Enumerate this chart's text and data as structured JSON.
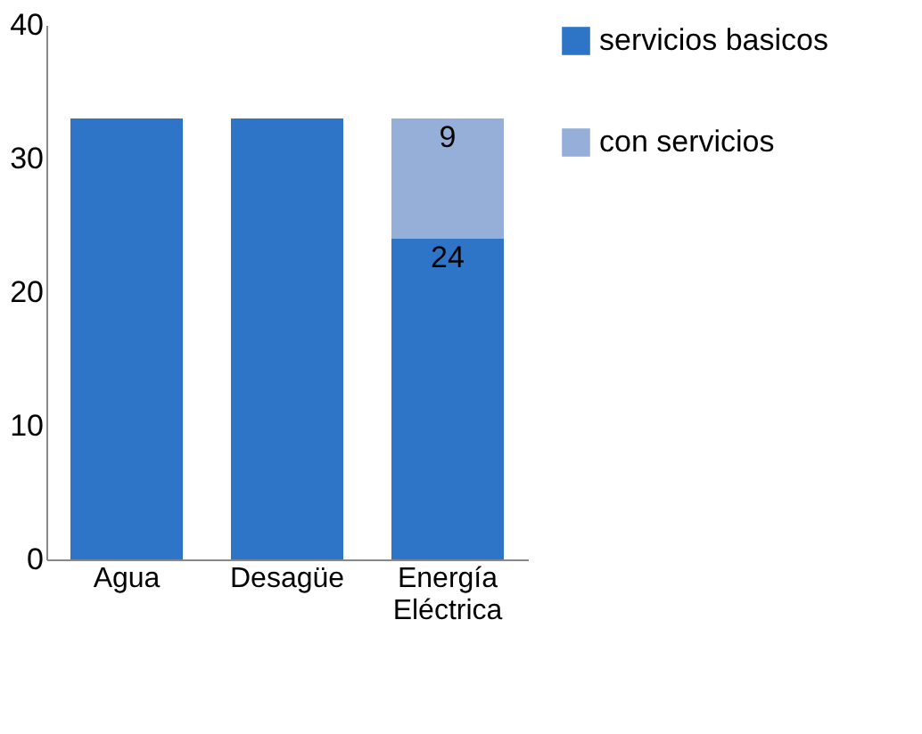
{
  "chart_data": {
    "type": "bar",
    "stacked": true,
    "categories": [
      "Agua",
      "Desagüe",
      "Energía Eléctrica"
    ],
    "series": [
      {
        "name": "servicios basicos",
        "color": "#2e75c8",
        "values": [
          33,
          33,
          24
        ],
        "value_labels": [
          null,
          null,
          "24"
        ]
      },
      {
        "name": "con servicios",
        "color": "#95afd8",
        "values": [
          null,
          null,
          9
        ],
        "value_labels": [
          null,
          null,
          "9"
        ]
      }
    ],
    "ylim": [
      0,
      40
    ],
    "yticks": [
      0,
      10,
      20,
      30,
      40
    ],
    "grid": false,
    "legend": "right"
  }
}
